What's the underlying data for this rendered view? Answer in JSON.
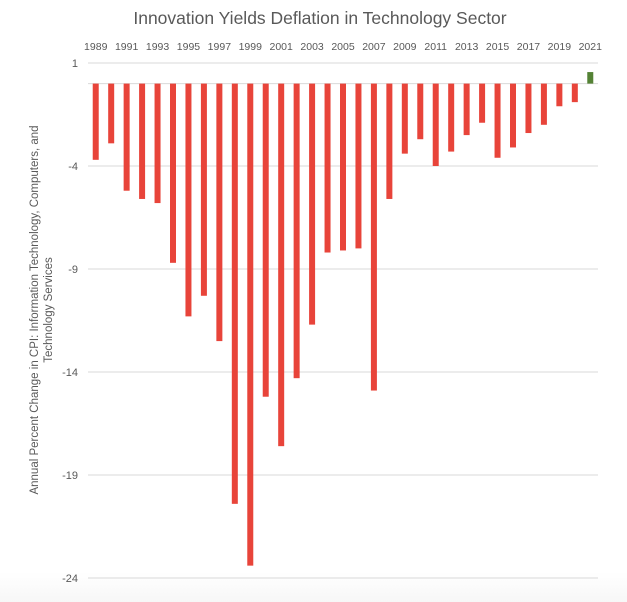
{
  "chart_data": {
    "type": "bar",
    "title": "Innovation Yields Deflation in Technology Sector",
    "xlabel": "",
    "ylabel": "Annual Percent Change in CPI: Information Technology, Computers, and Technology Services",
    "ylabel_lines": [
      "Annual Percent Change in CPI: Information Technology, Computers, and",
      "Technology Services"
    ],
    "ylim": [
      -24,
      1
    ],
    "yticks": [
      1,
      -4,
      -9,
      -14,
      -19,
      -24
    ],
    "x_tick_labels": [
      "1989",
      "1991",
      "1993",
      "1995",
      "1997",
      "1999",
      "2001",
      "2003",
      "2005",
      "2007",
      "2009",
      "2011",
      "2013",
      "2015",
      "2017",
      "2019",
      "2021"
    ],
    "x_axis_position": "top",
    "grid": true,
    "legend": "none",
    "categories": [
      "1989",
      "1990",
      "1991",
      "1992",
      "1993",
      "1994",
      "1995",
      "1996",
      "1997",
      "1998",
      "1999",
      "2000",
      "2001",
      "2002",
      "2003",
      "2004",
      "2005",
      "2006",
      "2007",
      "2008",
      "2009",
      "2010",
      "2011",
      "2012",
      "2013",
      "2014",
      "2015",
      "2016",
      "2017",
      "2018",
      "2019",
      "2020",
      "2021"
    ],
    "series": [
      {
        "name": "Annual Percent Change",
        "values": [
          -3.7,
          -2.9,
          -5.2,
          -5.6,
          -5.8,
          -8.7,
          -11.3,
          -10.3,
          -12.5,
          -20.4,
          -23.4,
          -15.2,
          -17.6,
          -14.3,
          -11.7,
          -8.2,
          -8.1,
          -8.0,
          -14.9,
          -5.6,
          -3.4,
          -2.7,
          -4.0,
          -3.3,
          -2.5,
          -1.9,
          -3.6,
          -3.1,
          -2.4,
          -2.0,
          -1.1,
          -0.9,
          0.56
        ]
      }
    ],
    "colors": {
      "negative": "#e8443a",
      "positive": "#548235",
      "grid": "#d9d9d9",
      "text": "#595959"
    }
  }
}
